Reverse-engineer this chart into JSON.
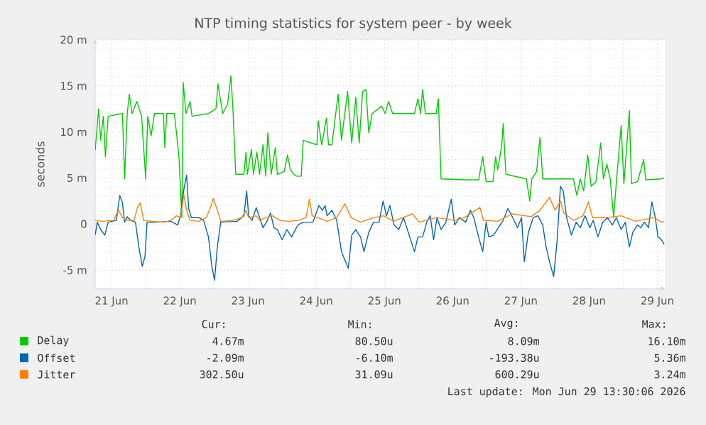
{
  "chart_data": {
    "type": "line",
    "title": "NTP timing statistics for system peer - by week",
    "ylabel": "seconds",
    "xlim": [
      "2026-06-21T06:14",
      "2026-06-29T14:38"
    ],
    "ylim": [
      -7,
      20
    ],
    "xticks": [
      {
        "value": "2026-06-21T12:00",
        "label": "21 Jun"
      },
      {
        "value": "2026-06-22T12:00",
        "label": "22 Jun"
      },
      {
        "value": "2026-06-23T12:00",
        "label": "23 Jun"
      },
      {
        "value": "2026-06-24T12:00",
        "label": "24 Jun"
      },
      {
        "value": "2026-06-25T12:00",
        "label": "25 Jun"
      },
      {
        "value": "2026-06-26T12:00",
        "label": "26 Jun"
      },
      {
        "value": "2026-06-27T12:00",
        "label": "27 Jun"
      },
      {
        "value": "2026-06-28T12:00",
        "label": "28 Jun"
      },
      {
        "value": "2026-06-29T12:00",
        "label": "29 Jun"
      },
      {
        "value": "2026-06-22T00:00",
        "label": null
      },
      {
        "value": "2026-06-23T00:00",
        "label": null
      },
      {
        "value": "2026-06-24T00:00",
        "label": null
      },
      {
        "value": "2026-06-25T00:00",
        "label": null
      },
      {
        "value": "2026-06-26T00:00",
        "label": null
      },
      {
        "value": "2026-06-27T00:00",
        "label": null
      },
      {
        "value": "2026-06-28T00:00",
        "label": null
      },
      {
        "value": "2026-06-29T00:00",
        "label": null
      }
    ],
    "yticks": [
      {
        "value": -5,
        "label": "-5 m"
      },
      {
        "value": 0,
        "label": "0"
      },
      {
        "value": 5,
        "label": "5 m"
      },
      {
        "value": 10,
        "label": "10 m"
      },
      {
        "value": 15,
        "label": "15 m"
      },
      {
        "value": 20,
        "label": "20 m"
      }
    ],
    "grid": true,
    "legend": "bottom",
    "series": [
      {
        "name": "Delay",
        "color": "#00cc00",
        "x": [
          "2026-06-21T06:14",
          "2026-06-21T07:26",
          "2026-06-21T08:10",
          "2026-06-21T09:07",
          "2026-06-21T09:50",
          "2026-06-21T10:48",
          "2026-06-21T15:50",
          "2026-06-21T16:34",
          "2026-06-21T17:31",
          "2026-06-21T18:14",
          "2026-06-21T19:12",
          "2026-06-21T20:53",
          "2026-06-21T22:34",
          "2026-06-22T00:00",
          "2026-06-22T00:43",
          "2026-06-22T01:55",
          "2026-06-22T03:07",
          "2026-06-22T06:14",
          "2026-06-22T06:43",
          "2026-06-22T07:26",
          "2026-06-22T10:05",
          "2026-06-22T11:17",
          "2026-06-22T11:46",
          "2026-06-22T12:43",
          "2026-06-22T13:12",
          "2026-06-22T14:10",
          "2026-06-22T15:36",
          "2026-06-22T16:19",
          "2026-06-22T22:05",
          "2026-06-23T00:43",
          "2026-06-23T01:26",
          "2026-06-23T02:24",
          "2026-06-23T03:07",
          "2026-06-23T04:48",
          "2026-06-23T06:00",
          "2026-06-23T06:43",
          "2026-06-23T07:41",
          "2026-06-23T10:34",
          "2026-06-23T11:17",
          "2026-06-23T11:46",
          "2026-06-23T13:12",
          "2026-06-23T13:55",
          "2026-06-23T15:07",
          "2026-06-23T16:05",
          "2026-06-23T17:17",
          "2026-06-23T18:14",
          "2026-06-23T18:58",
          "2026-06-23T20:10",
          "2026-06-23T21:36",
          "2026-06-23T22:19",
          "2026-06-24T00:43",
          "2026-06-24T01:55",
          "2026-06-24T02:53",
          "2026-06-24T04:05",
          "2026-06-24T05:02",
          "2026-06-24T06:43",
          "2026-06-24T07:26",
          "2026-06-24T12:14",
          "2026-06-24T12:43",
          "2026-06-24T13:55",
          "2026-06-24T15:36",
          "2026-06-24T16:19",
          "2026-06-24T17:31",
          "2026-06-24T19:41",
          "2026-06-24T20:53",
          "2026-06-24T23:02",
          "2026-06-25T00:29",
          "2026-06-25T01:55",
          "2026-06-25T03:07",
          "2026-06-25T04:19",
          "2026-06-25T05:31",
          "2026-06-25T06:29",
          "2026-06-25T07:41",
          "2026-06-25T11:02",
          "2026-06-25T12:14",
          "2026-06-25T13:26",
          "2026-06-25T14:53",
          "2026-06-25T22:34",
          "2026-06-25T23:46",
          "2026-06-26T00:43",
          "2026-06-26T01:26",
          "2026-06-26T02:24",
          "2026-06-26T06:14",
          "2026-06-26T06:58",
          "2026-06-26T07:55",
          "2026-06-26T16:05",
          "2026-06-26T21:07",
          "2026-06-26T22:34",
          "2026-06-26T23:46",
          "2026-06-27T02:10",
          "2026-06-27T03:07",
          "2026-06-27T03:50",
          "2026-06-27T05:17",
          "2026-06-27T05:46",
          "2026-06-27T06:43",
          "2026-06-27T13:55",
          "2026-06-27T15:07",
          "2026-06-27T15:50",
          "2026-06-27T17:31",
          "2026-06-27T18:43",
          "2026-06-27T19:41",
          "2026-06-28T06:29",
          "2026-06-28T07:41",
          "2026-06-28T08:53",
          "2026-06-28T10:05",
          "2026-06-28T11:31",
          "2026-06-28T12:43",
          "2026-06-28T14:24",
          "2026-06-28T16:05",
          "2026-06-28T17:02",
          "2026-06-28T18:14",
          "2026-06-28T19:26",
          "2026-06-28T20:38",
          "2026-06-28T21:36",
          "2026-06-28T23:17",
          "2026-06-29T00:14",
          "2026-06-29T02:10",
          "2026-06-29T02:53",
          "2026-06-29T05:02",
          "2026-06-29T07:12",
          "2026-06-29T07:55",
          "2026-06-29T13:26",
          "2026-06-29T14:24"
        ],
        "values": [
          8.0,
          12.5,
          9.1,
          11.7,
          7.3,
          11.7,
          12,
          4.9,
          12,
          14.1,
          12,
          13.3,
          11.7,
          4.9,
          11.7,
          9.6,
          12,
          12,
          8.3,
          12,
          12,
          8.6,
          7.0,
          0.7,
          15.4,
          12,
          13.3,
          11.7,
          12,
          12.5,
          15.2,
          13.3,
          12,
          13,
          16.1,
          12.3,
          5.4,
          5.4,
          7.8,
          5.4,
          8.1,
          5.4,
          7.8,
          5.4,
          8.6,
          5.2,
          9.9,
          5.4,
          8.3,
          5.4,
          5.7,
          7.5,
          5.9,
          5.4,
          5.2,
          5.2,
          9.1,
          8.6,
          11.2,
          8.6,
          11.5,
          8.6,
          8.6,
          14.1,
          9.1,
          14.4,
          8.8,
          13.8,
          8.8,
          14.4,
          14.6,
          9.9,
          12,
          12.8,
          12,
          13.3,
          12,
          12,
          13.6,
          12,
          14.6,
          12,
          12,
          13.6,
          4.9,
          4.8,
          4.8,
          7.3,
          4.6,
          4.6,
          7.3,
          5.9,
          8.6,
          10.9,
          5.4,
          4.9,
          2.5,
          4.9,
          5.7,
          9.4,
          4.9,
          4.9,
          3.1,
          4.9,
          3.6,
          7.5,
          4.1,
          4.6,
          8.8,
          4.9,
          6.5,
          4.9,
          0.7,
          4.6,
          10.7,
          4.4,
          12.3,
          4.4,
          4.6,
          7.0,
          4.8,
          4.9,
          5.0
        ]
      },
      {
        "name": "Offset",
        "color": "#0066b3",
        "x": [
          "2026-06-21T06:14",
          "2026-06-21T06:58",
          "2026-06-21T08:10",
          "2026-06-21T09:36",
          "2026-06-21T10:48",
          "2026-06-21T13:41",
          "2026-06-21T14:53",
          "2026-06-21T15:50",
          "2026-06-21T16:34",
          "2026-06-21T17:31",
          "2026-06-21T18:43",
          "2026-06-21T20:24",
          "2026-06-21T21:36",
          "2026-06-21T22:48",
          "2026-06-21T23:46",
          "2026-06-22T00:29",
          "2026-06-22T03:50",
          "2026-06-22T08:53",
          "2026-06-22T11:17",
          "2026-06-22T12:14",
          "2026-06-22T13:26",
          "2026-06-22T14:24",
          "2026-06-22T15:07",
          "2026-06-22T16:05",
          "2026-06-22T18:43",
          "2026-06-22T20:24",
          "2026-06-22T22:05",
          "2026-06-22T23:17",
          "2026-06-23T00:14",
          "2026-06-23T01:12",
          "2026-06-23T02:24",
          "2026-06-23T08:10",
          "2026-06-23T10:34",
          "2026-06-23T11:31",
          "2026-06-23T12:14",
          "2026-06-23T13:26",
          "2026-06-23T14:53",
          "2026-06-23T16:05",
          "2026-06-23T17:17",
          "2026-06-23T18:29",
          "2026-06-23T19:55",
          "2026-06-23T21:07",
          "2026-06-23T22:19",
          "2026-06-24T00:00",
          "2026-06-24T01:41",
          "2026-06-24T03:22",
          "2026-06-24T05:31",
          "2026-06-24T07:26",
          "2026-06-24T10:48",
          "2026-06-24T12:00",
          "2026-06-24T12:58",
          "2026-06-24T14:10",
          "2026-06-24T15:07",
          "2026-06-24T15:50",
          "2026-06-24T17:31",
          "2026-06-24T19:12",
          "2026-06-24T20:53",
          "2026-06-24T23:17",
          "2026-06-25T00:29",
          "2026-06-25T01:55",
          "2026-06-25T03:36",
          "2026-06-25T04:48",
          "2026-06-25T06:29",
          "2026-06-25T08:10",
          "2026-06-25T10:05",
          "2026-06-25T11:31",
          "2026-06-25T12:43",
          "2026-06-25T13:55",
          "2026-06-25T15:22",
          "2026-06-25T17:02",
          "2026-06-25T18:43",
          "2026-06-25T20:53",
          "2026-06-25T22:34",
          "2026-06-25T23:46",
          "2026-06-26T01:26",
          "2026-06-26T02:53",
          "2026-06-26T04:05",
          "2026-06-26T05:17",
          "2026-06-26T06:29",
          "2026-06-26T07:55",
          "2026-06-26T09:36",
          "2026-06-26T11:31",
          "2026-06-26T12:43",
          "2026-06-26T14:24",
          "2026-06-26T16:34",
          "2026-06-26T18:14",
          "2026-06-26T19:26",
          "2026-06-26T21:07",
          "2026-06-26T22:34",
          "2026-06-26T23:46",
          "2026-06-27T00:43",
          "2026-06-27T02:24",
          "2026-06-27T04:05",
          "2026-06-27T05:46",
          "2026-06-27T07:26",
          "2026-06-27T09:07",
          "2026-06-27T10:48",
          "2026-06-27T12:14",
          "2026-06-27T13:12",
          "2026-06-27T14:38",
          "2026-06-27T16:19",
          "2026-06-27T18:00",
          "2026-06-27T19:41",
          "2026-06-27T20:53",
          "2026-06-27T22:05",
          "2026-06-27T23:31",
          "2026-06-28T00:43",
          "2026-06-28T01:55",
          "2026-06-28T02:53",
          "2026-06-28T04:05",
          "2026-06-28T05:46",
          "2026-06-28T07:26",
          "2026-06-28T08:53",
          "2026-06-28T10:34",
          "2026-06-28T12:14",
          "2026-06-28T13:26",
          "2026-06-28T15:07",
          "2026-06-28T16:48",
          "2026-06-28T18:29",
          "2026-06-28T20:10",
          "2026-06-28T21:36",
          "2026-06-28T23:17",
          "2026-06-29T00:43",
          "2026-06-29T02:10",
          "2026-06-29T03:22",
          "2026-06-29T05:02",
          "2026-06-29T06:14",
          "2026-06-29T07:26",
          "2026-06-29T08:53",
          "2026-06-29T10:05",
          "2026-06-29T11:17",
          "2026-06-29T12:14",
          "2026-06-29T13:26",
          "2026-06-29T14:24"
        ],
        "values": [
          -1.2,
          0.2,
          -0.6,
          -1.2,
          0.2,
          0.4,
          3.1,
          2.3,
          0.2,
          0.8,
          0.4,
          0.2,
          -2.5,
          -4.6,
          -3.5,
          0.2,
          0.2,
          0.3,
          -0.1,
          0.9,
          3.8,
          5.3,
          1.7,
          0.7,
          0.7,
          0.4,
          -1.4,
          -4.6,
          -6.1,
          -2.5,
          0.2,
          0.3,
          0.9,
          3.6,
          0.9,
          0.4,
          1.8,
          0.7,
          -0.4,
          0.2,
          1.2,
          -0.4,
          -0.6,
          -1.7,
          -0.6,
          -1.4,
          -0.1,
          0.2,
          0.2,
          1.2,
          2.0,
          1.5,
          2.0,
          0.9,
          1.5,
          0.4,
          -3.0,
          -4.8,
          -1.2,
          -0.6,
          -1.4,
          -3.0,
          -0.9,
          0.2,
          0.2,
          2.5,
          0.9,
          2.0,
          -0.1,
          -0.6,
          0.7,
          -1.4,
          -3.0,
          -1.4,
          -1.4,
          0.2,
          0.9,
          -1.7,
          0.7,
          -0.6,
          0.2,
          2.7,
          -0.1,
          0.7,
          0.2,
          1.5,
          0.7,
          -1.4,
          -3.0,
          0.2,
          -1.4,
          -1.2,
          -0.4,
          0.4,
          1.7,
          0.7,
          -0.4,
          0.7,
          -4.1,
          -0.9,
          0.7,
          0.9,
          -0.1,
          -2.5,
          -4.1,
          -5.7,
          -1.9,
          4.1,
          3.6,
          0.7,
          -1.2,
          0.2,
          -0.4,
          0.9,
          -0.4,
          0.4,
          -1.4,
          0.2,
          0.7,
          -0.1,
          0.7,
          -0.6,
          0.2,
          -2.5,
          -0.9,
          -0.1,
          -0.4,
          0.2,
          -0.4,
          2.4,
          0.7,
          -1.4,
          -1.7,
          -2.2
        ]
      },
      {
        "name": "Jitter",
        "color": "#ff8000",
        "x": [
          "2026-06-21T06:14",
          "2026-06-21T08:38",
          "2026-06-21T12:43",
          "2026-06-21T14:24",
          "2026-06-21T15:50",
          "2026-06-21T17:31",
          "2026-06-21T19:55",
          "2026-06-21T21:07",
          "2026-06-21T22:05",
          "2026-06-21T23:17",
          "2026-06-22T02:10",
          "2026-06-22T06:14",
          "2026-06-22T08:53",
          "2026-06-22T10:48",
          "2026-06-22T12:14",
          "2026-06-22T13:26",
          "2026-06-22T14:24",
          "2026-06-22T15:36",
          "2026-06-22T18:43",
          "2026-06-22T21:22",
          "2026-06-22T23:02",
          "2026-06-22T23:46",
          "2026-06-23T01:12",
          "2026-06-23T02:24",
          "2026-06-23T06:29",
          "2026-06-23T09:50",
          "2026-06-23T11:17",
          "2026-06-23T12:14",
          "2026-06-23T14:53",
          "2026-06-23T16:05",
          "2026-06-23T18:14",
          "2026-06-23T20:38",
          "2026-06-23T23:17",
          "2026-06-24T02:24",
          "2026-06-24T05:46",
          "2026-06-24T08:24",
          "2026-06-24T09:36",
          "2026-06-24T10:34",
          "2026-06-24T12:29",
          "2026-06-24T15:50",
          "2026-06-24T19:12",
          "2026-06-24T22:05",
          "2026-06-25T00:14",
          "2026-06-25T03:36",
          "2026-06-25T08:24",
          "2026-06-25T11:46",
          "2026-06-25T15:07",
          "2026-06-25T21:50",
          "2026-06-26T00:14",
          "2026-06-26T06:14",
          "2026-06-26T12:43",
          "2026-06-26T16:05",
          "2026-06-26T21:36",
          "2026-06-26T22:48",
          "2026-06-27T03:50",
          "2026-06-27T08:53",
          "2026-06-27T15:36",
          "2026-06-27T18:43",
          "2026-06-27T22:05",
          "2026-06-28T00:00",
          "2026-06-28T01:55",
          "2026-06-28T03:07",
          "2026-06-28T06:29",
          "2026-06-28T09:50",
          "2026-06-28T11:46",
          "2026-06-28T13:12",
          "2026-06-28T18:14",
          "2026-06-28T23:17",
          "2026-06-29T04:19",
          "2026-06-29T10:48",
          "2026-06-29T13:26",
          "2026-06-29T14:24"
        ],
        "values": [
          0.4,
          0.3,
          0.4,
          1.5,
          0.7,
          0.4,
          0.4,
          1.8,
          2.3,
          0.4,
          0.3,
          0.2,
          0.4,
          0.9,
          0.7,
          3.2,
          1.5,
          0.4,
          0.3,
          0.7,
          2.0,
          2.8,
          1.5,
          0.3,
          0.4,
          0.7,
          1.5,
          0.7,
          0.9,
          0.4,
          0.7,
          0.9,
          0.4,
          0.3,
          0.4,
          0.7,
          2.7,
          0.9,
          0.7,
          0.3,
          0.7,
          2.2,
          0.7,
          0.2,
          0.7,
          0.9,
          0.3,
          1.1,
          0.2,
          0.7,
          0.4,
          0.7,
          1.8,
          0.4,
          0.3,
          1.1,
          0.8,
          1.5,
          2.9,
          1.5,
          2.5,
          1.2,
          0.4,
          0.9,
          2.4,
          0.7,
          0.7,
          0.9,
          0.3,
          0.7,
          0.2,
          0.3
        ]
      }
    ],
    "annotations": [
      "Cur:",
      "Min:",
      "Avg:",
      "Max:",
      "4.67m",
      "80.50u",
      "8.09m",
      "16.10m",
      "-2.09m",
      "-6.10m",
      "-193.38u",
      "5.36m",
      "302.50u",
      "31.09u",
      "600.29u",
      "3.24m",
      "Last update: Mon Jun 29 13:30:06 2026"
    ]
  }
}
